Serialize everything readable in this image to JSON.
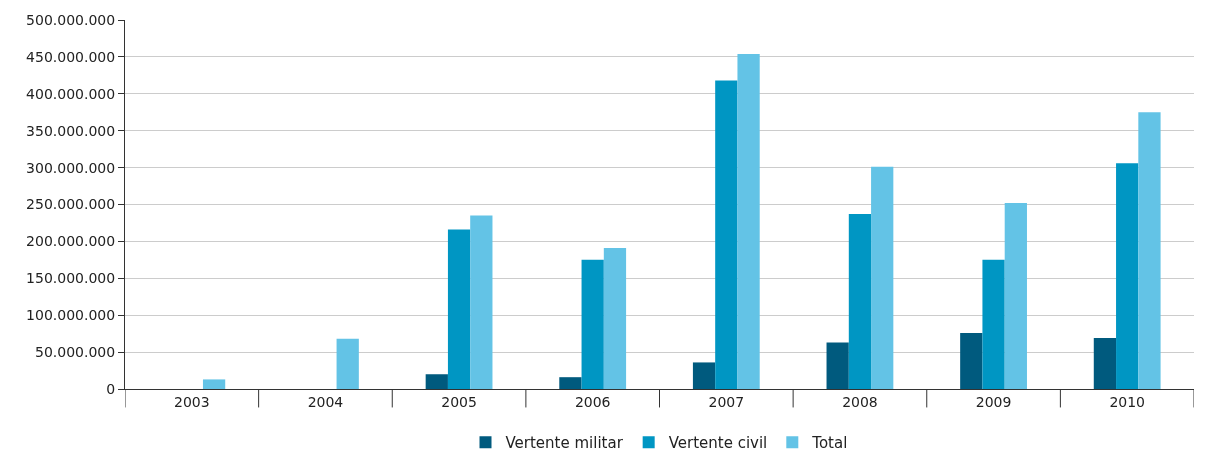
{
  "chart_data": {
    "type": "bar",
    "categories": [
      "2003",
      "2004",
      "2005",
      "2006",
      "2007",
      "2008",
      "2009",
      "2010"
    ],
    "series": [
      {
        "name": "Vertente militar",
        "color": "#005a7e",
        "values": [
          null,
          null,
          20000000,
          16000000,
          36000000,
          63000000,
          76000000,
          69000000
        ]
      },
      {
        "name": "Vertente civil",
        "color": "#0096c3",
        "values": [
          null,
          null,
          216000000,
          175000000,
          418000000,
          237000000,
          175000000,
          306000000
        ]
      },
      {
        "name": "Total",
        "color": "#63c3e6",
        "values": [
          13000000,
          68000000,
          235000000,
          191000000,
          454000000,
          301000000,
          252000000,
          375000000
        ]
      }
    ],
    "ylim": [
      0,
      500000000
    ],
    "yticks": [
      {
        "value": 0,
        "label": "0"
      },
      {
        "value": 50000000,
        "label": "50.000.000"
      },
      {
        "value": 100000000,
        "label": "100.000.000"
      },
      {
        "value": 150000000,
        "label": "150.000.000"
      },
      {
        "value": 200000000,
        "label": "200.000.000"
      },
      {
        "value": 250000000,
        "label": "250.000.000"
      },
      {
        "value": 300000000,
        "label": "300.000.000"
      },
      {
        "value": 350000000,
        "label": "350.000.000"
      },
      {
        "value": 400000000,
        "label": "400.000.000"
      },
      {
        "value": 450000000,
        "label": "450.000.000"
      },
      {
        "value": 500000000,
        "label": "500.000.000"
      }
    ],
    "grid": "y",
    "legend": "bottom"
  }
}
